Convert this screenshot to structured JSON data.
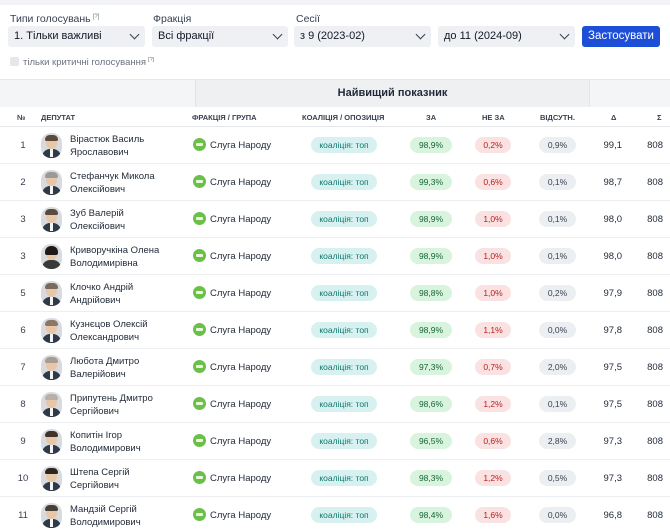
{
  "filters": {
    "vote_types": {
      "label": "Типи голосувань",
      "hint": "[?]",
      "value": "1. Тільки важливі"
    },
    "faction": {
      "label": "Фракція",
      "value": "Всі фракції"
    },
    "sessions": {
      "label": "Сесії",
      "from": "з 9 (2023-02)",
      "to": "до 11 (2024-09)"
    },
    "apply_label": "Застосувати",
    "critical_only": {
      "label": "тільки критичні голосування",
      "hint": "[?]",
      "checked": false
    }
  },
  "table": {
    "group_header": "Найвищий показник",
    "columns": {
      "num": "№",
      "deputy": "Депутат",
      "faction": "Фракція / група",
      "coalition": "Коаліція / опозиція",
      "za": "За",
      "ne_za": "Не за",
      "vidsutn": "Відсутн.",
      "delta": "Δ",
      "sigma": "Σ"
    },
    "rows": [
      {
        "num": "1",
        "name1": "Вірастюк Василь",
        "name2": "Ярославович",
        "faction": "Слуга Народу",
        "coalition": "коаліція: топ",
        "za": "98,9%",
        "ne_za": "0,2%",
        "vidsutn": "0,9%",
        "delta": "99,1",
        "sigma": "808"
      },
      {
        "num": "2",
        "name1": "Стефанчук Микола",
        "name2": "Олексійович",
        "faction": "Слуга Народу",
        "coalition": "коаліція: топ",
        "za": "99,3%",
        "ne_za": "0,6%",
        "vidsutn": "0,1%",
        "delta": "98,7",
        "sigma": "808"
      },
      {
        "num": "3",
        "name1": "Зуб Валерій",
        "name2": "Олексійович",
        "faction": "Слуга Народу",
        "coalition": "коаліція: топ",
        "za": "98,9%",
        "ne_za": "1,0%",
        "vidsutn": "0,1%",
        "delta": "98,0",
        "sigma": "808"
      },
      {
        "num": "3",
        "name1": "Криворучкіна Олена",
        "name2": "Володимирівна",
        "faction": "Слуга Народу",
        "coalition": "коаліція: топ",
        "za": "98,9%",
        "ne_za": "1,0%",
        "vidsutn": "0,1%",
        "delta": "98,0",
        "sigma": "808"
      },
      {
        "num": "5",
        "name1": "Клочко Андрій",
        "name2": "Андрійович",
        "faction": "Слуга Народу",
        "coalition": "коаліція: топ",
        "za": "98,8%",
        "ne_za": "1,0%",
        "vidsutn": "0,2%",
        "delta": "97,9",
        "sigma": "808"
      },
      {
        "num": "6",
        "name1": "Кузнєцов Олексій",
        "name2": "Олександрович",
        "faction": "Слуга Народу",
        "coalition": "коаліція: топ",
        "za": "98,9%",
        "ne_za": "1,1%",
        "vidsutn": "0,0%",
        "delta": "97,8",
        "sigma": "808"
      },
      {
        "num": "7",
        "name1": "Любота Дмитро",
        "name2": "Валерійович",
        "faction": "Слуга Народу",
        "coalition": "коаліція: топ",
        "za": "97,3%",
        "ne_za": "0,7%",
        "vidsutn": "2,0%",
        "delta": "97,5",
        "sigma": "808"
      },
      {
        "num": "8",
        "name1": "Припутень Дмитро",
        "name2": "Сергійович",
        "faction": "Слуга Народу",
        "coalition": "коаліція: топ",
        "za": "98,6%",
        "ne_za": "1,2%",
        "vidsutn": "0,1%",
        "delta": "97,5",
        "sigma": "808"
      },
      {
        "num": "9",
        "name1": "Копитін Ігор",
        "name2": "Володимирович",
        "faction": "Слуга Народу",
        "coalition": "коаліція: топ",
        "za": "96,5%",
        "ne_za": "0,6%",
        "vidsutn": "2,8%",
        "delta": "97,3",
        "sigma": "808"
      },
      {
        "num": "10",
        "name1": "Штепа Сергій",
        "name2": "Сергійович",
        "faction": "Слуга Народу",
        "coalition": "коаліція: топ",
        "za": "98,3%",
        "ne_za": "1,2%",
        "vidsutn": "0,5%",
        "delta": "97,3",
        "sigma": "808"
      },
      {
        "num": "11",
        "name1": "Мандзій Сергій",
        "name2": "Володимирович",
        "faction": "Слуга Народу",
        "coalition": "коаліція: топ",
        "za": "98,4%",
        "ne_za": "1,6%",
        "vidsutn": "0,0%",
        "delta": "96,8",
        "sigma": "808"
      }
    ]
  }
}
